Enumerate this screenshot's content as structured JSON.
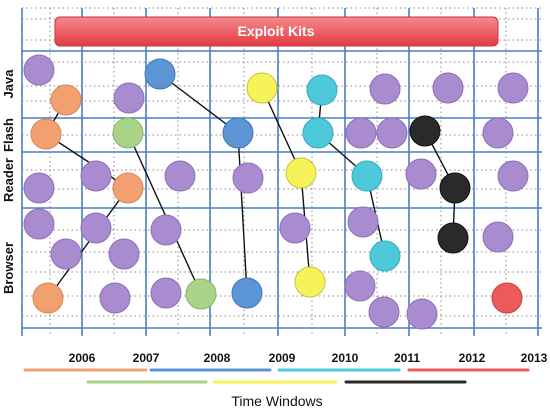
{
  "banner": {
    "label": "Exploit Kits",
    "color": "#ef5458"
  },
  "rows": [
    {
      "label": "Java"
    },
    {
      "label": "Flash"
    },
    {
      "label": "Reader"
    },
    {
      "label": "Browser"
    }
  ],
  "years": [
    "2006",
    "2007",
    "2008",
    "2009",
    "2010",
    "2011",
    "2012",
    "2013"
  ],
  "time_title": "Time Windows",
  "kit_colors": {
    "purple": "#a98bd0",
    "orange": "#f3a070",
    "green": "#a9d488",
    "blue": "#5c95d6",
    "yellow": "#f6f25a",
    "cyan": "#4ec9dc",
    "black": "#2a2a2a",
    "red": "#ec5b5b"
  },
  "kit_paths": [
    {
      "kit": "orange",
      "steps": [
        "Java",
        "Flash",
        "Reader",
        "Browser"
      ]
    },
    {
      "kit": "green",
      "steps": [
        "Flash",
        "Browser"
      ]
    },
    {
      "kit": "blue",
      "steps": [
        "Java",
        "Flash",
        "Browser"
      ]
    },
    {
      "kit": "yellow",
      "steps": [
        "Java",
        "Reader",
        "Browser"
      ]
    },
    {
      "kit": "cyan",
      "steps": [
        "Java",
        "Flash",
        "Reader",
        "Browser"
      ]
    },
    {
      "kit": "black",
      "steps": [
        "Flash",
        "Reader",
        "Browser"
      ]
    }
  ],
  "time_window_kits": [
    "orange",
    "green",
    "blue",
    "yellow",
    "cyan",
    "black",
    "red"
  ]
}
